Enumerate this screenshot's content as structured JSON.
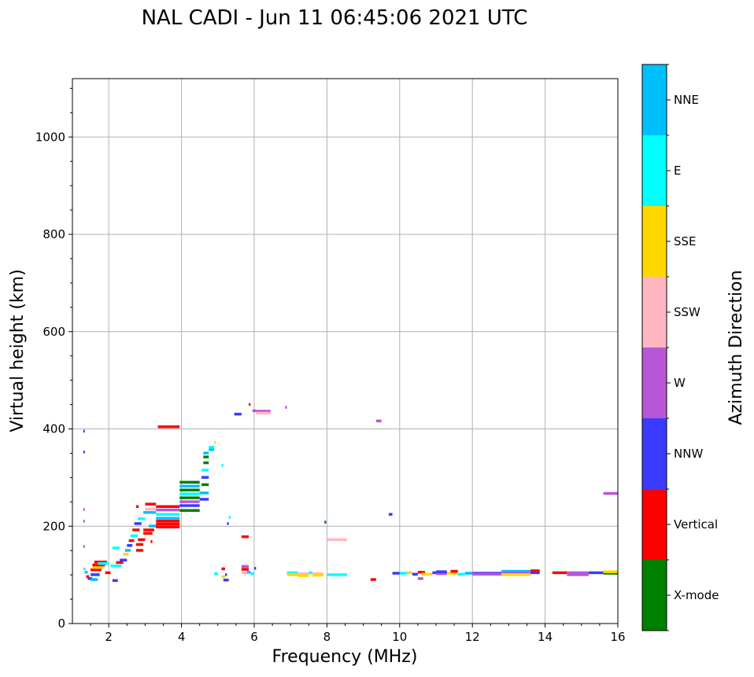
{
  "chart_data": {
    "type": "scatter",
    "title": "NAL CADI - Jun 11 06:45:06 2021 UTC",
    "xlabel": "Frequency (MHz)",
    "ylabel": "Virtual height (km)",
    "xlim": [
      1.0,
      16.0
    ],
    "ylim": [
      0,
      1120
    ],
    "x_ticks": [
      "2",
      "4",
      "6",
      "8",
      "10",
      "12",
      "14",
      "16"
    ],
    "y_ticks": [
      "0",
      "200",
      "400",
      "600",
      "800",
      "1000"
    ],
    "grid": true,
    "colorbar": {
      "label": "Azimuth Direction",
      "categories": [
        {
          "name": "X-mode",
          "color": "#008000"
        },
        {
          "name": "Vertical",
          "color": "#ff0000"
        },
        {
          "name": "NNW",
          "color": "#3b3bff"
        },
        {
          "name": "W",
          "color": "#b857d6"
        },
        {
          "name": "SSW",
          "color": "#ffb6c1"
        },
        {
          "name": "SSE",
          "color": "#ffd700"
        },
        {
          "name": "E",
          "color": "#00ffff"
        },
        {
          "name": "NNE",
          "color": "#00bfff"
        }
      ]
    },
    "echoes": [
      {
        "x0": 1.3,
        "x1": 1.34,
        "y": 395,
        "c": "NNW"
      },
      {
        "x0": 1.3,
        "x1": 1.34,
        "y": 352,
        "c": "NNW"
      },
      {
        "x0": 1.3,
        "x1": 1.34,
        "y": 234,
        "c": "W"
      },
      {
        "x0": 1.3,
        "x1": 1.34,
        "y": 210,
        "c": "W"
      },
      {
        "x0": 1.3,
        "x1": 1.34,
        "y": 158,
        "c": "W"
      },
      {
        "x0": 1.3,
        "x1": 1.36,
        "y": 112,
        "c": "E"
      },
      {
        "x0": 1.34,
        "x1": 1.42,
        "y": 105,
        "c": "NNE"
      },
      {
        "x0": 1.38,
        "x1": 1.46,
        "y": 96,
        "c": "Vertical"
      },
      {
        "x0": 1.42,
        "x1": 1.55,
        "y": 92,
        "c": "NNW"
      },
      {
        "x0": 1.5,
        "x1": 1.7,
        "y": 90,
        "c": "NNE"
      },
      {
        "x0": 1.5,
        "x1": 1.75,
        "y": 100,
        "c": "NNW"
      },
      {
        "x0": 1.5,
        "x1": 1.8,
        "y": 110,
        "c": "Vertical"
      },
      {
        "x0": 1.55,
        "x1": 1.85,
        "y": 115,
        "c": "SSE"
      },
      {
        "x0": 1.55,
        "x1": 1.9,
        "y": 120,
        "c": "Vertical"
      },
      {
        "x0": 1.6,
        "x1": 1.95,
        "y": 126,
        "c": "Vertical"
      },
      {
        "x0": 1.7,
        "x1": 2.0,
        "y": 123,
        "c": "E"
      },
      {
        "x0": 1.9,
        "x1": 2.05,
        "y": 104,
        "c": "Vertical"
      },
      {
        "x0": 2.1,
        "x1": 2.25,
        "y": 88,
        "c": "NNW"
      },
      {
        "x0": 2.1,
        "x1": 2.3,
        "y": 155,
        "c": "E"
      },
      {
        "x0": 2.05,
        "x1": 2.35,
        "y": 118,
        "c": "E"
      },
      {
        "x0": 2.2,
        "x1": 2.4,
        "y": 125,
        "c": "Vertical"
      },
      {
        "x0": 2.3,
        "x1": 2.5,
        "y": 130,
        "c": "NNW"
      },
      {
        "x0": 2.4,
        "x1": 2.55,
        "y": 142,
        "c": "SSE"
      },
      {
        "x0": 2.45,
        "x1": 2.6,
        "y": 150,
        "c": "NNE"
      },
      {
        "x0": 2.5,
        "x1": 2.65,
        "y": 160,
        "c": "NNW"
      },
      {
        "x0": 2.55,
        "x1": 2.7,
        "y": 170,
        "c": "Vertical"
      },
      {
        "x0": 2.6,
        "x1": 2.8,
        "y": 180,
        "c": "E"
      },
      {
        "x0": 2.65,
        "x1": 2.85,
        "y": 192,
        "c": "Vertical"
      },
      {
        "x0": 2.7,
        "x1": 2.9,
        "y": 205,
        "c": "NNW"
      },
      {
        "x0": 2.75,
        "x1": 2.95,
        "y": 162,
        "c": "Vertical"
      },
      {
        "x0": 2.75,
        "x1": 2.95,
        "y": 150,
        "c": "Vertical"
      },
      {
        "x0": 2.8,
        "x1": 3.0,
        "y": 172,
        "c": "Vertical"
      },
      {
        "x0": 2.8,
        "x1": 3.0,
        "y": 215,
        "c": "E"
      },
      {
        "x0": 2.75,
        "x1": 2.82,
        "y": 240,
        "c": "Vertical"
      },
      {
        "x0": 2.95,
        "x1": 3.2,
        "y": 185,
        "c": "Vertical"
      },
      {
        "x0": 2.95,
        "x1": 3.25,
        "y": 192,
        "c": "Vertical"
      },
      {
        "x0": 2.95,
        "x1": 3.3,
        "y": 228,
        "c": "NNE"
      },
      {
        "x0": 3.0,
        "x1": 3.3,
        "y": 235,
        "c": "SSW"
      },
      {
        "x0": 3.0,
        "x1": 3.3,
        "y": 245,
        "c": "Vertical"
      },
      {
        "x0": 3.1,
        "x1": 3.35,
        "y": 200,
        "c": "NNE"
      },
      {
        "x0": 3.15,
        "x1": 3.2,
        "y": 168,
        "c": "Vertical"
      },
      {
        "x0": 3.3,
        "x1": 3.95,
        "y": 198,
        "c": "Vertical"
      },
      {
        "x0": 3.3,
        "x1": 3.95,
        "y": 204,
        "c": "Vertical"
      },
      {
        "x0": 3.3,
        "x1": 3.95,
        "y": 210,
        "c": "Vertical"
      },
      {
        "x0": 3.3,
        "x1": 3.95,
        "y": 216,
        "c": "NNE"
      },
      {
        "x0": 3.3,
        "x1": 3.95,
        "y": 224,
        "c": "E"
      },
      {
        "x0": 3.3,
        "x1": 3.95,
        "y": 233,
        "c": "W"
      },
      {
        "x0": 3.3,
        "x1": 3.95,
        "y": 240,
        "c": "Vertical"
      },
      {
        "x0": 3.35,
        "x1": 3.95,
        "y": 404,
        "c": "Vertical"
      },
      {
        "x0": 3.95,
        "x1": 4.5,
        "y": 232,
        "c": "X-mode"
      },
      {
        "x0": 3.95,
        "x1": 4.5,
        "y": 242,
        "c": "NNW"
      },
      {
        "x0": 3.95,
        "x1": 4.5,
        "y": 250,
        "c": "W"
      },
      {
        "x0": 3.95,
        "x1": 4.5,
        "y": 258,
        "c": "X-mode"
      },
      {
        "x0": 3.95,
        "x1": 4.5,
        "y": 266,
        "c": "E"
      },
      {
        "x0": 3.95,
        "x1": 4.5,
        "y": 274,
        "c": "X-mode"
      },
      {
        "x0": 3.95,
        "x1": 4.5,
        "y": 282,
        "c": "NNE"
      },
      {
        "x0": 3.95,
        "x1": 4.5,
        "y": 290,
        "c": "X-mode"
      },
      {
        "x0": 4.5,
        "x1": 4.75,
        "y": 255,
        "c": "NNW"
      },
      {
        "x0": 4.5,
        "x1": 4.75,
        "y": 268,
        "c": "NNE"
      },
      {
        "x0": 4.55,
        "x1": 4.75,
        "y": 285,
        "c": "X-mode"
      },
      {
        "x0": 4.55,
        "x1": 4.75,
        "y": 300,
        "c": "NNW"
      },
      {
        "x0": 4.55,
        "x1": 4.75,
        "y": 315,
        "c": "E"
      },
      {
        "x0": 4.6,
        "x1": 4.75,
        "y": 330,
        "c": "X-mode"
      },
      {
        "x0": 4.6,
        "x1": 4.75,
        "y": 342,
        "c": "X-mode"
      },
      {
        "x0": 4.6,
        "x1": 4.75,
        "y": 350,
        "c": "NNE"
      },
      {
        "x0": 4.75,
        "x1": 4.9,
        "y": 357,
        "c": "NNE"
      },
      {
        "x0": 4.75,
        "x1": 4.9,
        "y": 362,
        "c": "E"
      },
      {
        "x0": 4.9,
        "x1": 4.95,
        "y": 372,
        "c": "SSE"
      },
      {
        "x0": 5.1,
        "x1": 5.15,
        "y": 325,
        "c": "E"
      },
      {
        "x0": 4.9,
        "x1": 5.0,
        "y": 102,
        "c": "E"
      },
      {
        "x0": 5.1,
        "x1": 5.2,
        "y": 112,
        "c": "Vertical"
      },
      {
        "x0": 5.1,
        "x1": 5.2,
        "y": 96,
        "c": "SSE"
      },
      {
        "x0": 5.15,
        "x1": 5.3,
        "y": 89,
        "c": "NNW"
      },
      {
        "x0": 5.2,
        "x1": 5.25,
        "y": 100,
        "c": "NNW"
      },
      {
        "x0": 5.25,
        "x1": 5.3,
        "y": 205,
        "c": "NNW"
      },
      {
        "x0": 5.3,
        "x1": 5.35,
        "y": 218,
        "c": "E"
      },
      {
        "x0": 5.45,
        "x1": 5.65,
        "y": 430,
        "c": "NNW"
      },
      {
        "x0": 5.65,
        "x1": 5.85,
        "y": 178,
        "c": "Vertical"
      },
      {
        "x0": 5.65,
        "x1": 5.85,
        "y": 117,
        "c": "W"
      },
      {
        "x0": 5.65,
        "x1": 5.85,
        "y": 111,
        "c": "Vertical"
      },
      {
        "x0": 5.65,
        "x1": 5.8,
        "y": 104,
        "c": "SSW"
      },
      {
        "x0": 5.8,
        "x1": 5.9,
        "y": 105,
        "c": "NNE"
      },
      {
        "x0": 5.85,
        "x1": 5.9,
        "y": 450,
        "c": "Vertical"
      },
      {
        "x0": 5.9,
        "x1": 6.0,
        "y": 102,
        "c": "E"
      },
      {
        "x0": 6.0,
        "x1": 6.05,
        "y": 113,
        "c": "NNW"
      },
      {
        "x0": 5.95,
        "x1": 6.05,
        "y": 437,
        "c": "W"
      },
      {
        "x0": 6.05,
        "x1": 6.45,
        "y": 436,
        "c": "W"
      },
      {
        "x0": 6.05,
        "x1": 6.45,
        "y": 432,
        "c": "SSW"
      },
      {
        "x0": 6.85,
        "x1": 6.9,
        "y": 444,
        "c": "W"
      },
      {
        "x0": 6.9,
        "x1": 7.2,
        "y": 104,
        "c": "E"
      },
      {
        "x0": 6.9,
        "x1": 7.2,
        "y": 100,
        "c": "SSE"
      },
      {
        "x0": 7.2,
        "x1": 7.5,
        "y": 102,
        "c": "SSW"
      },
      {
        "x0": 7.2,
        "x1": 7.5,
        "y": 98,
        "c": "SSE"
      },
      {
        "x0": 7.5,
        "x1": 7.6,
        "y": 104,
        "c": "E"
      },
      {
        "x0": 7.6,
        "x1": 7.9,
        "y": 102,
        "c": "SSW"
      },
      {
        "x0": 7.6,
        "x1": 7.9,
        "y": 99,
        "c": "SSE"
      },
      {
        "x0": 7.93,
        "x1": 7.98,
        "y": 208,
        "c": "X-mode"
      },
      {
        "x0": 8.0,
        "x1": 8.55,
        "y": 172,
        "c": "SSW"
      },
      {
        "x0": 8.0,
        "x1": 8.55,
        "y": 100,
        "c": "E"
      },
      {
        "x0": 9.2,
        "x1": 9.35,
        "y": 90,
        "c": "Vertical"
      },
      {
        "x0": 9.35,
        "x1": 9.5,
        "y": 416,
        "c": "W"
      },
      {
        "x0": 9.7,
        "x1": 9.8,
        "y": 224,
        "c": "NNW"
      },
      {
        "x0": 9.8,
        "x1": 10.0,
        "y": 103,
        "c": "NNW"
      },
      {
        "x0": 10.0,
        "x1": 10.2,
        "y": 103,
        "c": "E"
      },
      {
        "x0": 10.2,
        "x1": 10.35,
        "y": 104,
        "c": "SSE"
      },
      {
        "x0": 10.35,
        "x1": 10.5,
        "y": 101,
        "c": "NNW"
      },
      {
        "x0": 10.5,
        "x1": 10.65,
        "y": 92,
        "c": "W"
      },
      {
        "x0": 10.5,
        "x1": 10.7,
        "y": 105,
        "c": "Vertical"
      },
      {
        "x0": 10.6,
        "x1": 10.9,
        "y": 101,
        "c": "SSE"
      },
      {
        "x0": 10.9,
        "x1": 11.0,
        "y": 104,
        "c": "NNW"
      },
      {
        "x0": 11.0,
        "x1": 11.3,
        "y": 102,
        "c": "W"
      },
      {
        "x0": 11.0,
        "x1": 11.3,
        "y": 106,
        "c": "NNW"
      },
      {
        "x0": 11.3,
        "x1": 11.6,
        "y": 103,
        "c": "SSE"
      },
      {
        "x0": 11.4,
        "x1": 11.6,
        "y": 107,
        "c": "Vertical"
      },
      {
        "x0": 11.6,
        "x1": 11.8,
        "y": 101,
        "c": "E"
      },
      {
        "x0": 11.8,
        "x1": 12.0,
        "y": 103,
        "c": "NNE"
      },
      {
        "x0": 12.0,
        "x1": 12.8,
        "y": 103,
        "c": "NNW"
      },
      {
        "x0": 12.0,
        "x1": 12.8,
        "y": 101,
        "c": "W"
      },
      {
        "x0": 12.8,
        "x1": 13.6,
        "y": 107,
        "c": "NNE"
      },
      {
        "x0": 12.8,
        "x1": 13.6,
        "y": 103,
        "c": "W"
      },
      {
        "x0": 12.8,
        "x1": 13.6,
        "y": 100,
        "c": "SSE"
      },
      {
        "x0": 13.6,
        "x1": 13.85,
        "y": 104,
        "c": "NNW"
      },
      {
        "x0": 13.6,
        "x1": 13.85,
        "y": 108,
        "c": "Vertical"
      },
      {
        "x0": 14.2,
        "x1": 14.6,
        "y": 104,
        "c": "Vertical"
      },
      {
        "x0": 14.6,
        "x1": 15.2,
        "y": 104,
        "c": "W"
      },
      {
        "x0": 14.6,
        "x1": 15.2,
        "y": 100,
        "c": "W"
      },
      {
        "x0": 15.2,
        "x1": 15.6,
        "y": 104,
        "c": "NNW"
      },
      {
        "x0": 15.6,
        "x1": 16.0,
        "y": 103,
        "c": "X-mode"
      },
      {
        "x0": 15.6,
        "x1": 16.0,
        "y": 106,
        "c": "SSE"
      },
      {
        "x0": 15.6,
        "x1": 16.0,
        "y": 267,
        "c": "W"
      }
    ]
  }
}
